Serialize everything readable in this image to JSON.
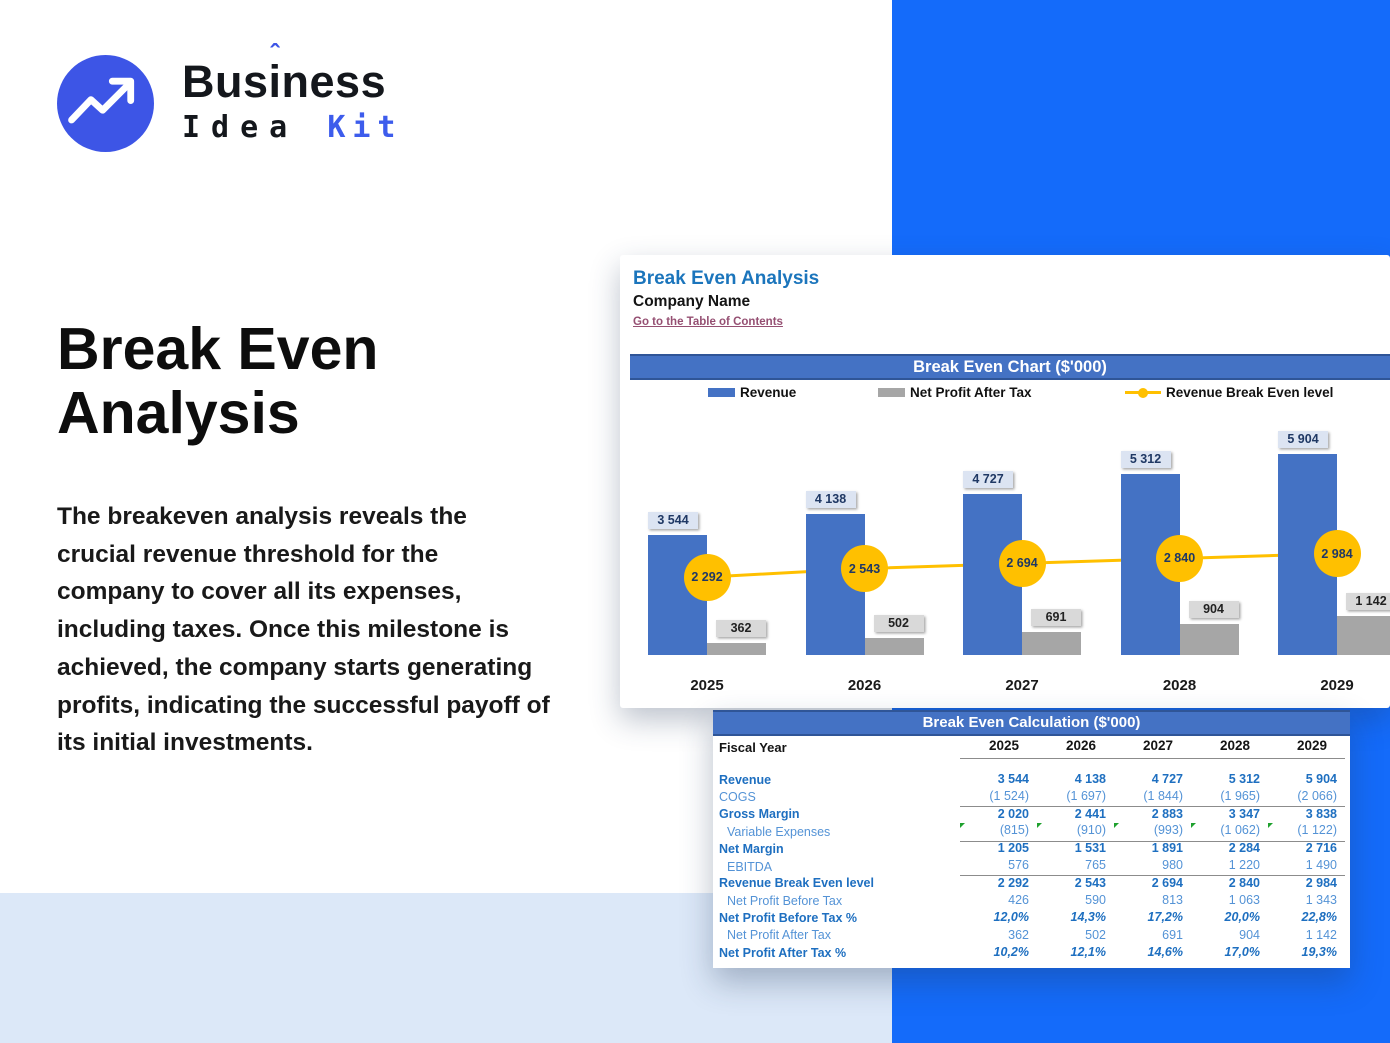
{
  "logo": {
    "brand_prefix": "Bus",
    "brand_i": "i",
    "brand_suffix": "ness",
    "caret": "ˆ",
    "brand_bottom_black": "Idea",
    "brand_bottom_blue": "Kit"
  },
  "hero": {
    "title_line1": "Break Even",
    "title_line2": "Analysis",
    "paragraph": "The breakeven analysis reveals the crucial revenue threshold for the company to cover all its expenses, including taxes. Once this milestone is achieved, the company starts generating profits, indicating the successful payoff of its initial investments."
  },
  "sheet": {
    "title": "Break Even Analysis",
    "company": "Company Name",
    "link": "Go to the Table of Contents"
  },
  "chart_data": {
    "type": "bar",
    "title": "Break Even Chart ($'000)",
    "categories": [
      "2025",
      "2026",
      "2027",
      "2028",
      "2029"
    ],
    "series": [
      {
        "name": "Revenue",
        "kind": "bar",
        "color": "#4472C4",
        "values": [
          3544,
          4138,
          4727,
          5312,
          5904
        ]
      },
      {
        "name": "Net Profit After Tax",
        "kind": "bar",
        "color": "#A6A6A6",
        "values": [
          362,
          502,
          691,
          904,
          1142
        ]
      },
      {
        "name": "Revenue Break Even level",
        "kind": "line",
        "color": "#FFC000",
        "values": [
          2292,
          2543,
          2694,
          2840,
          2984
        ]
      }
    ],
    "value_labels": true,
    "legend_position": "top",
    "ylim": [
      0,
      6500
    ],
    "grid": false
  },
  "table": {
    "title": "Break Even Calculation ($'000)",
    "header_label": "Fiscal Year",
    "years": [
      "2025",
      "2026",
      "2027",
      "2028",
      "2029"
    ],
    "rows": [
      {
        "label": "Revenue",
        "style": "bold",
        "indent": false,
        "separator_below": false,
        "flags": false,
        "values": [
          "3 544",
          "4 138",
          "4 727",
          "5 312",
          "5 904"
        ]
      },
      {
        "label": "COGS",
        "style": "reg",
        "indent": false,
        "separator_below": true,
        "flags": false,
        "values": [
          "(1 524)",
          "(1 697)",
          "(1 844)",
          "(1 965)",
          "(2 066)"
        ]
      },
      {
        "label": "Gross Margin",
        "style": "bold",
        "indent": false,
        "separator_below": false,
        "flags": false,
        "values": [
          "2 020",
          "2 441",
          "2 883",
          "3 347",
          "3 838"
        ]
      },
      {
        "label": "Variable Expenses",
        "style": "reg",
        "indent": true,
        "separator_below": true,
        "flags": true,
        "values": [
          "(815)",
          "(910)",
          "(993)",
          "(1 062)",
          "(1 122)"
        ]
      },
      {
        "label": "Net Margin",
        "style": "bold",
        "indent": false,
        "separator_below": false,
        "flags": false,
        "values": [
          "1 205",
          "1 531",
          "1 891",
          "2 284",
          "2 716"
        ]
      },
      {
        "label": "EBITDA",
        "style": "reg",
        "indent": true,
        "separator_below": true,
        "flags": false,
        "values": [
          "576",
          "765",
          "980",
          "1 220",
          "1 490"
        ]
      },
      {
        "label": "Revenue Break Even level",
        "style": "bold",
        "indent": false,
        "separator_below": false,
        "flags": false,
        "values": [
          "2 292",
          "2 543",
          "2 694",
          "2 840",
          "2 984"
        ]
      },
      {
        "label": "Net Profit Before Tax",
        "style": "reg",
        "indent": true,
        "separator_below": false,
        "flags": false,
        "values": [
          "426",
          "590",
          "813",
          "1 063",
          "1 343"
        ]
      },
      {
        "label": "Net Profit Before Tax %",
        "style": "bolditalic",
        "indent": false,
        "separator_below": false,
        "flags": false,
        "values": [
          "12,0%",
          "14,3%",
          "17,2%",
          "20,0%",
          "22,8%"
        ]
      },
      {
        "label": "Net Profit After Tax",
        "style": "reg",
        "indent": true,
        "separator_below": false,
        "flags": false,
        "values": [
          "362",
          "502",
          "691",
          "904",
          "1 142"
        ]
      },
      {
        "label": "Net Profit After Tax %",
        "style": "bolditalic",
        "indent": false,
        "separator_below": false,
        "flags": false,
        "values": [
          "10,2%",
          "12,1%",
          "14,6%",
          "17,0%",
          "19,3%"
        ]
      }
    ]
  },
  "colors": {
    "accent_blue": "#146BFA",
    "logo_blue": "#3D55E6",
    "excel_banner": "#4472C4",
    "bar_blue": "#4472C4",
    "bar_gray": "#A6A6A6",
    "line_yellow": "#FFC000",
    "link": "#954F72",
    "light_panel": "#DCE8F8"
  }
}
